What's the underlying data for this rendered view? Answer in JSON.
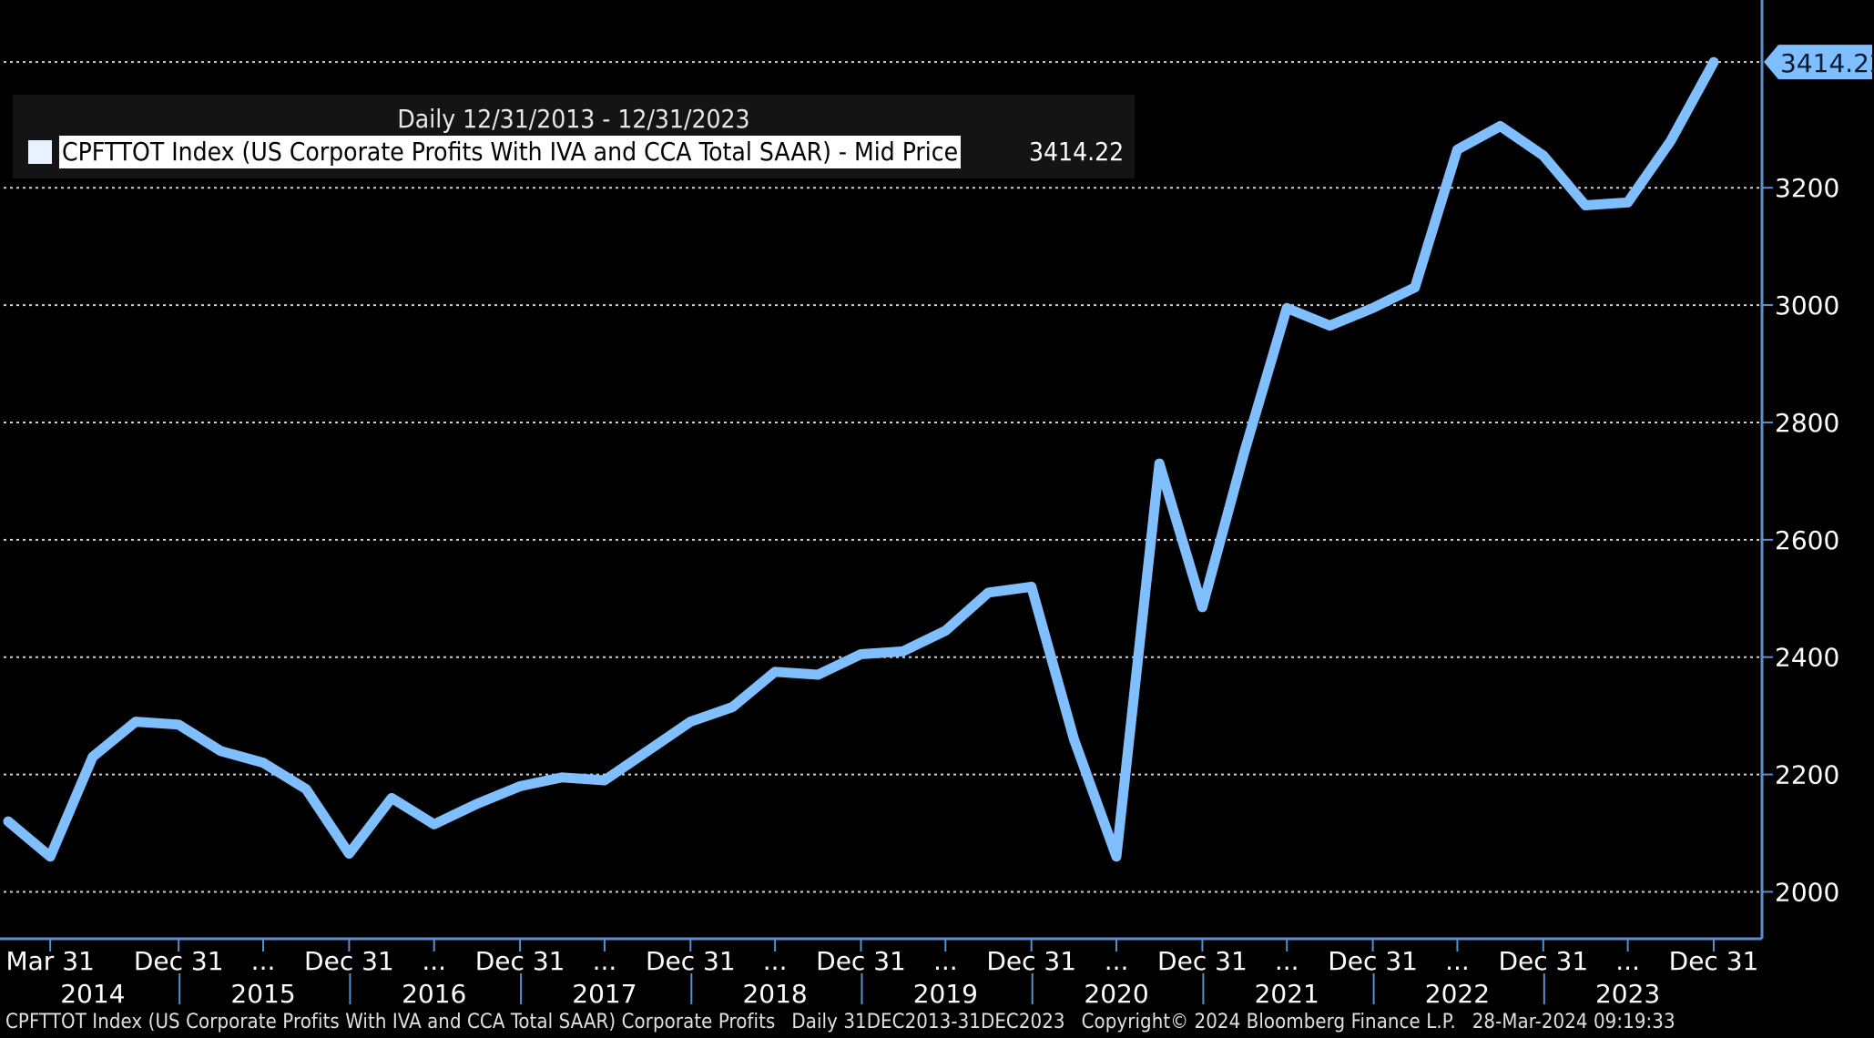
{
  "legend": {
    "title": "Daily 12/31/2013 - 12/31/2023",
    "series_label": "CPFTTOT Index (US Corporate Profits With IVA and CCA Total SAAR) - Mid Price",
    "last_value": "3414.22"
  },
  "footer": {
    "security": "CPFTTOT Index (US Corporate Profits With IVA and CCA Total SAAR) Corporate Profits",
    "range": "Daily 31DEC2013-31DEC2023",
    "copyright": "Copyright© 2024 Bloomberg Finance L.P.",
    "timestamp": "28-Mar-2024 09:19:33"
  },
  "colors": {
    "background": "#000000",
    "line": "#7fbfff",
    "grid": "#d0d0d0",
    "axis": "#5b8fcc",
    "last_price_tag": "#7fbfff"
  },
  "chart_data": {
    "type": "line",
    "ylim": [
      1920,
      3520
    ],
    "yticks": [
      2000,
      2200,
      2400,
      2600,
      2800,
      3000,
      3200
    ],
    "last_price_label": "3414.22",
    "x_tick_labels": [
      "Mar 31",
      "Dec 31",
      "...",
      "Dec 31",
      "...",
      "Dec 31",
      "...",
      "Dec 31",
      "...",
      "Dec 31",
      "...",
      "Dec 31",
      "...",
      "Dec 31",
      "...",
      "Dec 31",
      "...",
      "Dec 31",
      "...",
      "Dec 31",
      "...",
      "Dec 31"
    ],
    "x_tick_dates": [
      "2014-03-31",
      "2014-12-31",
      "2015-06-30",
      "2015-12-31",
      "2016-06-30",
      "2016-12-31",
      "2017-06-30",
      "2017-12-31",
      "2018-06-30",
      "2018-12-31",
      "2019-06-30",
      "2019-12-31",
      "2020-06-30",
      "2020-12-31",
      "2021-06-30",
      "2021-12-31",
      "2022-06-30",
      "2022-12-31",
      "2023-06-30",
      "2023-12-31"
    ],
    "year_labels": [
      "2014",
      "2015",
      "2016",
      "2017",
      "2018",
      "2019",
      "2020",
      "2021",
      "2022",
      "2023"
    ],
    "year_dates": [
      "2014-06-30",
      "2015-06-30",
      "2016-06-30",
      "2017-06-30",
      "2018-06-30",
      "2019-06-30",
      "2020-06-30",
      "2021-06-30",
      "2022-06-30",
      "2023-06-30"
    ],
    "series": [
      {
        "x": [
          "2013-12-31",
          "2014-03-31",
          "2014-06-30",
          "2014-09-30",
          "2014-12-31",
          "2015-03-31",
          "2015-06-30",
          "2015-09-30",
          "2015-12-31",
          "2016-03-31",
          "2016-06-30",
          "2016-09-30",
          "2016-12-31",
          "2017-03-31",
          "2017-06-30",
          "2017-09-30",
          "2017-12-31",
          "2018-03-31",
          "2018-06-30",
          "2018-09-30",
          "2018-12-31",
          "2019-03-31",
          "2019-06-30",
          "2019-09-30",
          "2019-12-31",
          "2020-03-31",
          "2020-06-30",
          "2020-09-30",
          "2020-12-31",
          "2021-03-31",
          "2021-06-30",
          "2021-09-30",
          "2021-12-31",
          "2022-03-31",
          "2022-06-30",
          "2022-09-30",
          "2022-12-31",
          "2023-03-31",
          "2023-06-30",
          "2023-09-30",
          "2023-12-31"
        ],
        "values": [
          2120,
          2060,
          2230,
          2290,
          2285,
          2240,
          2220,
          2175,
          2065,
          2160,
          2115,
          2150,
          2180,
          2195,
          2190,
          2240,
          2290,
          2315,
          2375,
          2370,
          2405,
          2410,
          2445,
          2510,
          2520,
          2260,
          2060,
          2730,
          2485,
          2750,
          2995,
          2965,
          2995,
          3030,
          3265,
          3305,
          3255,
          3170,
          3175,
          3280,
          3414.22
        ]
      }
    ]
  }
}
